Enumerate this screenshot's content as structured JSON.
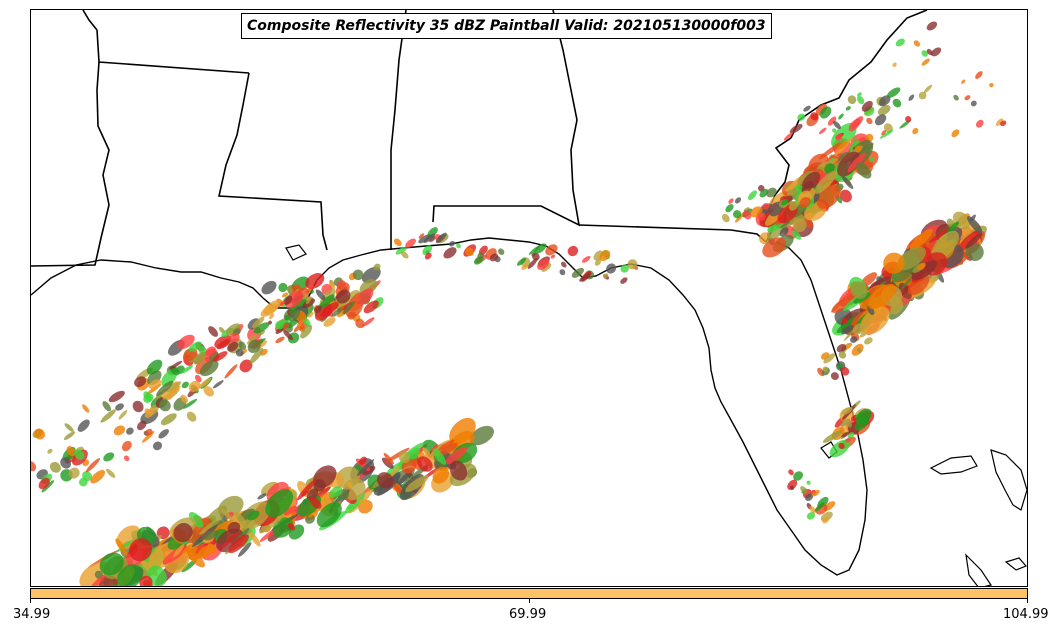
{
  "title": "Composite Reflectivity 35 dBZ Paintball Valid: 202105130000f003",
  "colorbar": {
    "color": "#ffc266",
    "ticks": [
      "34.99",
      "69.99",
      "104.99"
    ]
  },
  "member_colors": [
    "#e8a030",
    "#f07d00",
    "#e64e1a",
    "#ff4040",
    "#dd1f1f",
    "#8b2f2f",
    "#9a9a3a",
    "#b5a23c",
    "#3cd63c",
    "#1f9a1f",
    "#5a7a3a",
    "#555555"
  ]
}
